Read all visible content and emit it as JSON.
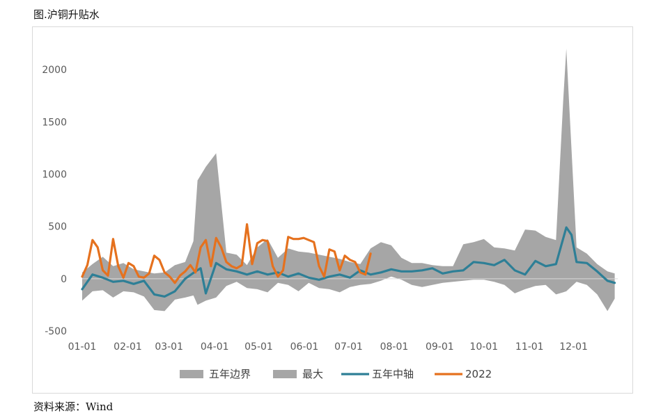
{
  "title": "图.沪铜升贴水",
  "source": "资料来源：Wind",
  "chart_data": {
    "type": "area",
    "ylim": [
      -500,
      2200
    ],
    "yticks": [
      -500,
      0,
      500,
      1000,
      1500,
      2000
    ],
    "xlim": [
      0,
      52
    ],
    "xticks": [
      {
        "label": "01-01",
        "week": 0
      },
      {
        "label": "02-01",
        "week": 4.43
      },
      {
        "label": "03-01",
        "week": 8.43
      },
      {
        "label": "04-01",
        "week": 12.86
      },
      {
        "label": "05-01",
        "week": 17.14
      },
      {
        "label": "06-01",
        "week": 21.57
      },
      {
        "label": "07-01",
        "week": 25.86
      },
      {
        "label": "08-01",
        "week": 30.29
      },
      {
        "label": "09-01",
        "week": 34.71
      },
      {
        "label": "10-01",
        "week": 39.0
      },
      {
        "label": "11-01",
        "week": 43.43
      },
      {
        "label": "12-01",
        "week": 47.71
      }
    ],
    "colors": {
      "band": "#a6a6a6",
      "max": "#a6a6a6",
      "mid": "#2e7f96",
      "y2022": "#e5711e",
      "zero": "#d9d9d9"
    },
    "legend": [
      "五年边界",
      "最大",
      "五年中轴",
      "2022"
    ],
    "series": [
      {
        "name": "五年边界",
        "key": "band",
        "x": [
          0,
          1,
          2,
          3,
          4,
          5,
          6,
          7,
          8,
          9,
          10,
          10.8,
          11.2,
          12,
          13,
          14,
          15,
          16,
          17,
          18,
          19,
          20,
          21,
          22,
          23,
          24,
          25,
          26,
          27,
          28,
          29,
          30,
          31,
          32,
          33,
          34,
          35,
          36,
          37,
          38,
          39,
          40,
          41,
          42,
          43,
          44,
          45,
          46,
          46.7,
          47,
          48,
          49,
          50,
          51,
          51.7
        ],
        "upper": [
          60,
          140,
          210,
          120,
          150,
          90,
          70,
          50,
          60,
          130,
          160,
          360,
          940,
          1070,
          1200,
          250,
          230,
          130,
          300,
          380,
          200,
          290,
          260,
          250,
          230,
          210,
          190,
          160,
          140,
          290,
          350,
          320,
          200,
          150,
          150,
          130,
          120,
          120,
          330,
          350,
          380,
          300,
          290,
          270,
          470,
          460,
          400,
          370,
          1700,
          2200,
          300,
          240,
          140,
          70,
          50
        ],
        "lower": [
          -210,
          -120,
          -110,
          -180,
          -120,
          -130,
          -170,
          -300,
          -310,
          -200,
          -180,
          -160,
          -250,
          -210,
          -180,
          -70,
          -30,
          -90,
          -100,
          -130,
          -40,
          -60,
          -120,
          -40,
          -90,
          -100,
          -130,
          -80,
          -60,
          -50,
          -20,
          20,
          -10,
          -60,
          -80,
          -60,
          -40,
          -30,
          -20,
          -10,
          -10,
          -30,
          -60,
          -140,
          -100,
          -70,
          -60,
          -150,
          -130,
          -120,
          -30,
          -60,
          -150,
          -310,
          -190
        ]
      },
      {
        "name": "五年中轴",
        "key": "mid",
        "x": [
          0,
          1,
          2,
          3,
          4,
          5,
          6,
          7,
          8,
          9,
          10,
          11,
          11.5,
          12,
          13,
          14,
          15,
          16,
          17,
          18,
          19,
          20,
          21,
          22,
          23,
          24,
          25,
          26,
          27,
          28,
          29,
          30,
          31,
          32,
          33,
          34,
          35,
          36,
          37,
          38,
          39,
          40,
          41,
          42,
          43,
          44,
          45,
          46,
          47,
          47.5,
          48,
          49,
          50,
          51,
          51.7
        ],
        "values": [
          -100,
          40,
          10,
          -30,
          -20,
          -50,
          -20,
          -150,
          -170,
          -120,
          0,
          70,
          100,
          -140,
          150,
          90,
          70,
          40,
          70,
          40,
          60,
          20,
          50,
          10,
          -10,
          20,
          40,
          10,
          80,
          40,
          60,
          90,
          70,
          70,
          80,
          100,
          50,
          70,
          80,
          160,
          150,
          130,
          180,
          80,
          40,
          170,
          120,
          140,
          490,
          420,
          160,
          150,
          70,
          -20,
          -40
        ]
      },
      {
        "name": "2022",
        "key": "y2022",
        "x": [
          0,
          0.5,
          1,
          1.5,
          2,
          2.5,
          3,
          3.5,
          4,
          4.5,
          5,
          5.5,
          6,
          6.5,
          7,
          7.5,
          8,
          8.5,
          9,
          9.5,
          10,
          10.5,
          11,
          11.5,
          12,
          12.5,
          13,
          13.5,
          14,
          14.5,
          15,
          15.5,
          16,
          16.5,
          17,
          17.5,
          18,
          18.5,
          19,
          19.5,
          20,
          20.5,
          21,
          21.5,
          22,
          22.5,
          23,
          23.5,
          24,
          24.5,
          25,
          25.5,
          26,
          26.5,
          27,
          27.5,
          28
        ],
        "values": [
          20,
          130,
          370,
          300,
          80,
          30,
          380,
          120,
          10,
          150,
          120,
          20,
          10,
          50,
          220,
          180,
          60,
          20,
          -40,
          30,
          70,
          130,
          60,
          300,
          370,
          120,
          390,
          300,
          160,
          120,
          100,
          130,
          520,
          140,
          340,
          370,
          360,
          120,
          20,
          80,
          400,
          380,
          380,
          390,
          370,
          350,
          120,
          20,
          280,
          260,
          80,
          220,
          180,
          160,
          60,
          40,
          240
        ]
      }
    ]
  }
}
